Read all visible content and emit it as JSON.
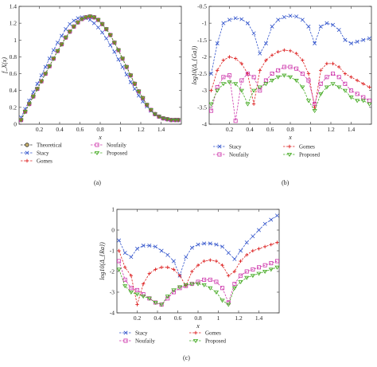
{
  "figure": {
    "panel_labels": [
      "(a)",
      "(b)",
      "(c)"
    ]
  },
  "chart_data": [
    {
      "id": "a",
      "type": "line",
      "xlabel": "x",
      "ylabel": "f_X(x)",
      "xlim": [
        0,
        1.6
      ],
      "ylim": [
        0,
        1.4
      ],
      "xticks": [
        "0.2",
        "0.4",
        "0.6",
        "0.8",
        "1",
        "1.2",
        "1.4"
      ],
      "yticks": [
        "0",
        "0.2",
        "0.4",
        "0.6",
        "0.8",
        "1",
        "1.2",
        "1.4"
      ],
      "x": [
        0.02,
        0.06,
        0.1,
        0.14,
        0.18,
        0.22,
        0.26,
        0.3,
        0.34,
        0.38,
        0.42,
        0.46,
        0.5,
        0.54,
        0.58,
        0.62,
        0.66,
        0.7,
        0.74,
        0.78,
        0.82,
        0.86,
        0.9,
        0.94,
        0.98,
        1.02,
        1.06,
        1.1,
        1.14,
        1.18,
        1.22,
        1.26,
        1.3,
        1.34,
        1.38,
        1.42,
        1.46,
        1.5,
        1.54,
        1.57
      ],
      "series": [
        {
          "name": "Theoretical",
          "color": "#333333",
          "marker": "circle",
          "values": [
            0.05,
            0.15,
            0.24,
            0.33,
            0.42,
            0.51,
            0.6,
            0.69,
            0.78,
            0.87,
            0.95,
            1.03,
            1.1,
            1.16,
            1.21,
            1.25,
            1.27,
            1.28,
            1.27,
            1.24,
            1.19,
            1.13,
            1.06,
            0.97,
            0.88,
            0.78,
            0.68,
            0.58,
            0.48,
            0.39,
            0.31,
            0.23,
            0.17,
            0.12,
            0.09,
            0.07,
            0.06,
            0.05,
            0.05,
            0.05
          ]
        },
        {
          "name": "Stacy",
          "color": "#3355cc",
          "marker": "x",
          "values": [
            0.08,
            0.18,
            0.28,
            0.38,
            0.48,
            0.58,
            0.68,
            0.78,
            0.88,
            0.97,
            1.05,
            1.13,
            1.19,
            1.23,
            1.26,
            1.27,
            1.26,
            1.24,
            1.2,
            1.15,
            1.09,
            1.02,
            0.94,
            0.86,
            0.77,
            0.68,
            0.59,
            0.5,
            0.42,
            0.34,
            0.27,
            0.21,
            0.16,
            0.12,
            0.09,
            0.07,
            0.06,
            0.05,
            0.05,
            0.05
          ]
        },
        {
          "name": "Gomes",
          "color": "#dd2222",
          "marker": "plus",
          "values": [
            0.05,
            0.15,
            0.24,
            0.33,
            0.42,
            0.51,
            0.6,
            0.69,
            0.78,
            0.87,
            0.95,
            1.03,
            1.1,
            1.16,
            1.21,
            1.25,
            1.27,
            1.28,
            1.27,
            1.24,
            1.19,
            1.13,
            1.06,
            0.97,
            0.88,
            0.78,
            0.68,
            0.58,
            0.48,
            0.39,
            0.31,
            0.23,
            0.17,
            0.12,
            0.09,
            0.07,
            0.06,
            0.05,
            0.05,
            0.05
          ]
        },
        {
          "name": "Noufaily",
          "color": "#cc33aa",
          "marker": "square",
          "values": [
            0.05,
            0.15,
            0.24,
            0.33,
            0.42,
            0.51,
            0.6,
            0.69,
            0.78,
            0.87,
            0.95,
            1.03,
            1.1,
            1.16,
            1.21,
            1.25,
            1.27,
            1.28,
            1.27,
            1.24,
            1.19,
            1.13,
            1.06,
            0.97,
            0.88,
            0.78,
            0.68,
            0.58,
            0.48,
            0.39,
            0.31,
            0.23,
            0.17,
            0.12,
            0.09,
            0.07,
            0.06,
            0.05,
            0.05,
            0.05
          ]
        },
        {
          "name": "Proposed",
          "color": "#44aa22",
          "marker": "triangle",
          "values": [
            0.05,
            0.15,
            0.24,
            0.33,
            0.42,
            0.51,
            0.6,
            0.69,
            0.78,
            0.87,
            0.95,
            1.03,
            1.1,
            1.16,
            1.21,
            1.25,
            1.27,
            1.28,
            1.27,
            1.24,
            1.19,
            1.13,
            1.06,
            0.97,
            0.88,
            0.78,
            0.68,
            0.58,
            0.48,
            0.39,
            0.31,
            0.23,
            0.17,
            0.12,
            0.09,
            0.07,
            0.06,
            0.05,
            0.05,
            0.05
          ]
        }
      ],
      "legend": "below"
    },
    {
      "id": "b",
      "type": "line",
      "xlabel": "x",
      "ylabel": "log10(Δ_{Ga})",
      "xlim": [
        0,
        1.6
      ],
      "ylim": [
        -4,
        -0.5
      ],
      "xticks": [
        "0.2",
        "0.4",
        "0.6",
        "0.8",
        "1",
        "1.2",
        "1.4"
      ],
      "yticks": [
        "-0.5",
        "-1",
        "-1.5",
        "-2",
        "-2.5",
        "-3",
        "-3.5",
        "-4"
      ],
      "x": [
        0.02,
        0.08,
        0.14,
        0.2,
        0.26,
        0.32,
        0.38,
        0.44,
        0.5,
        0.56,
        0.62,
        0.68,
        0.74,
        0.8,
        0.86,
        0.92,
        0.98,
        1.04,
        1.1,
        1.16,
        1.22,
        1.28,
        1.34,
        1.4,
        1.46,
        1.52,
        1.58
      ],
      "series": [
        {
          "name": "Stacy",
          "color": "#3355cc",
          "marker": "x",
          "values": [
            -2.5,
            -1.6,
            -1.0,
            -0.9,
            -0.85,
            -0.88,
            -1.0,
            -1.3,
            -1.9,
            -1.6,
            -1.1,
            -0.9,
            -0.82,
            -0.78,
            -0.8,
            -0.9,
            -1.1,
            -1.6,
            -1.1,
            -1.0,
            -1.05,
            -1.2,
            -1.5,
            -1.6,
            -1.55,
            -1.5,
            -1.45
          ]
        },
        {
          "name": "Gomes",
          "color": "#dd2222",
          "marker": "plus",
          "values": [
            -3.0,
            -2.4,
            -2.1,
            -2.0,
            -2.05,
            -2.2,
            -2.5,
            -3.4,
            -2.4,
            -2.1,
            -1.95,
            -1.85,
            -1.8,
            -1.82,
            -1.9,
            -2.1,
            -2.5,
            -3.5,
            -2.4,
            -2.2,
            -2.2,
            -2.3,
            -2.5,
            -2.6,
            -2.7,
            -2.8,
            -2.9
          ]
        },
        {
          "name": "Noufaily",
          "color": "#cc33aa",
          "marker": "square",
          "values": [
            -3.6,
            -2.9,
            -2.6,
            -2.55,
            -3.9,
            -2.7,
            -2.5,
            -2.6,
            -3.0,
            -2.7,
            -2.5,
            -2.4,
            -2.3,
            -2.3,
            -2.35,
            -2.5,
            -2.7,
            -3.4,
            -2.8,
            -2.6,
            -2.5,
            -2.6,
            -2.8,
            -3.0,
            -3.1,
            -3.2,
            -3.3
          ]
        },
        {
          "name": "Proposed",
          "color": "#44aa22",
          "marker": "triangle",
          "values": [
            -3.4,
            -3.0,
            -2.8,
            -2.75,
            -2.8,
            -3.0,
            -3.4,
            -3.0,
            -2.9,
            -2.8,
            -2.7,
            -2.6,
            -2.55,
            -2.6,
            -2.7,
            -2.9,
            -3.3,
            -3.6,
            -3.1,
            -2.9,
            -2.8,
            -2.9,
            -3.0,
            -3.2,
            -3.3,
            -3.3,
            -3.4
          ]
        }
      ],
      "legend": "below"
    },
    {
      "id": "c",
      "type": "line",
      "xlabel": "x",
      "ylabel": "log10(Δ_{Ra})",
      "xlim": [
        0,
        1.6
      ],
      "ylim": [
        -4,
        1
      ],
      "xticks": [
        "0.2",
        "0.4",
        "0.6",
        "0.8",
        "1",
        "1.2",
        "1.4"
      ],
      "yticks": [
        "1",
        "0",
        "-1",
        "-2",
        "-3",
        "-4"
      ],
      "x": [
        0.02,
        0.08,
        0.14,
        0.2,
        0.26,
        0.32,
        0.38,
        0.44,
        0.5,
        0.56,
        0.62,
        0.68,
        0.74,
        0.8,
        0.86,
        0.92,
        0.98,
        1.04,
        1.1,
        1.16,
        1.22,
        1.28,
        1.34,
        1.4,
        1.46,
        1.52,
        1.58
      ],
      "series": [
        {
          "name": "Stacy",
          "color": "#3355cc",
          "marker": "x",
          "values": [
            -0.5,
            -1.1,
            -1.3,
            -0.9,
            -0.75,
            -0.75,
            -0.8,
            -1.0,
            -1.2,
            -1.5,
            -2.2,
            -1.3,
            -0.85,
            -0.7,
            -0.65,
            -0.65,
            -0.7,
            -0.8,
            -1.1,
            -1.4,
            -1.0,
            -0.6,
            -0.3,
            0.0,
            0.3,
            0.5,
            0.7
          ]
        },
        {
          "name": "Gomes",
          "color": "#dd2222",
          "marker": "plus",
          "values": [
            -1.0,
            -1.8,
            -2.2,
            -3.6,
            -2.6,
            -2.1,
            -1.9,
            -1.8,
            -1.8,
            -1.9,
            -2.2,
            -2.7,
            -2.0,
            -1.7,
            -1.5,
            -1.45,
            -1.5,
            -1.7,
            -2.2,
            -2.0,
            -1.5,
            -1.2,
            -1.0,
            -0.9,
            -0.8,
            -0.7,
            -0.6
          ]
        },
        {
          "name": "Noufaily",
          "color": "#cc33aa",
          "marker": "square",
          "values": [
            -1.5,
            -2.4,
            -2.8,
            -2.9,
            -3.1,
            -3.3,
            -3.5,
            -3.6,
            -3.3,
            -3.0,
            -2.8,
            -2.7,
            -2.6,
            -2.5,
            -2.4,
            -2.4,
            -2.5,
            -2.8,
            -3.5,
            -2.6,
            -2.2,
            -2.0,
            -1.9,
            -1.8,
            -1.7,
            -1.6,
            -1.5
          ]
        },
        {
          "name": "Proposed",
          "color": "#44aa22",
          "marker": "triangle",
          "values": [
            -1.9,
            -2.7,
            -3.0,
            -3.1,
            -3.2,
            -3.3,
            -3.5,
            -3.6,
            -3.2,
            -2.9,
            -2.75,
            -2.65,
            -2.6,
            -2.6,
            -2.65,
            -2.8,
            -3.0,
            -3.4,
            -3.6,
            -2.8,
            -2.5,
            -2.3,
            -2.2,
            -2.1,
            -2.0,
            -1.9,
            -1.8
          ]
        }
      ],
      "legend": "below"
    }
  ]
}
